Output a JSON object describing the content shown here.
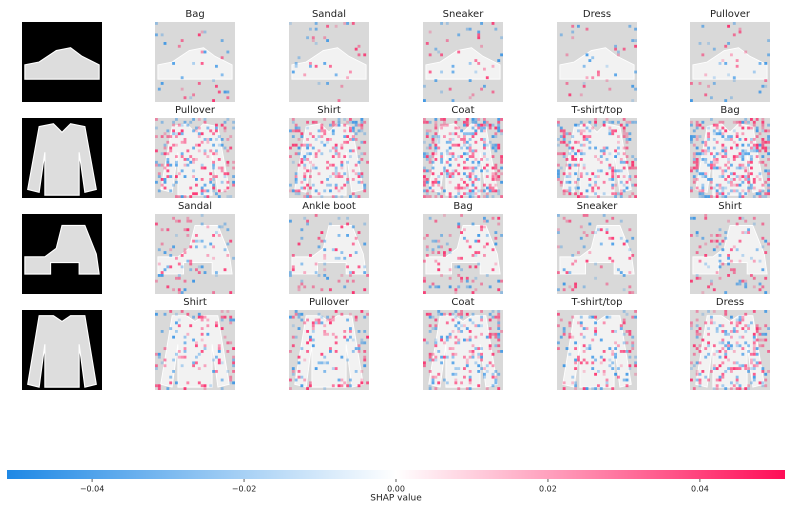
{
  "chart_data": {
    "type": "shap-image",
    "rows": [
      {
        "labels": [
          "Bag",
          "Sandal",
          "Sneaker",
          "Dress",
          "Pullover"
        ]
      },
      {
        "labels": [
          "Pullover",
          "Shirt",
          "Coat",
          "T-shirt/top",
          "Bag"
        ]
      },
      {
        "labels": [
          "Sandal",
          "Ankle boot",
          "Bag",
          "Sneaker",
          "Shirt"
        ]
      },
      {
        "labels": [
          "Shirt",
          "Pullover",
          "Coat",
          "T-shirt/top",
          "Dress"
        ]
      }
    ],
    "colorbar": {
      "label": "SHAP value",
      "xlim": [
        -0.0512,
        0.0512
      ],
      "xticks": [
        {
          "value": -0.04,
          "label": "−0.04"
        },
        {
          "value": -0.02,
          "label": "−0.02"
        },
        {
          "value": 0,
          "label": "0.00"
        },
        0.02,
        0.04
      ],
      "colors": [
        "#1e88e5",
        "#ffffff",
        "#ff0d57"
      ]
    }
  }
}
